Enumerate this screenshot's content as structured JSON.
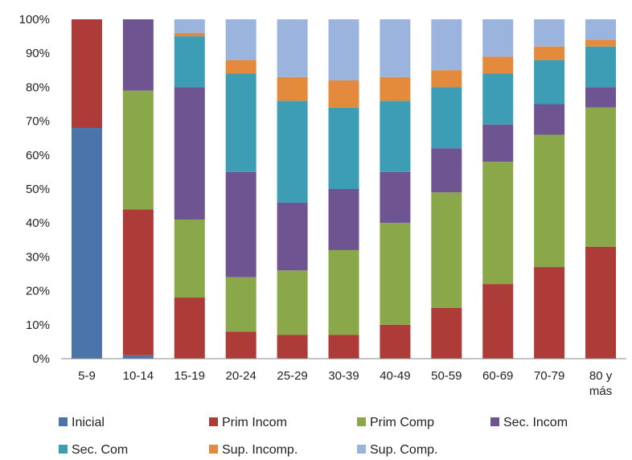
{
  "chart_data": {
    "type": "bar",
    "stacked": true,
    "percent": true,
    "title": "",
    "xlabel": "",
    "ylabel": "",
    "ylim": [
      0,
      100
    ],
    "yticks": [
      "0%",
      "10%",
      "20%",
      "30%",
      "40%",
      "50%",
      "60%",
      "70%",
      "80%",
      "90%",
      "100%"
    ],
    "grid": false,
    "legend_position": "bottom",
    "categories": [
      [
        "5-9"
      ],
      [
        "10-14"
      ],
      [
        "15-19"
      ],
      [
        "20-24"
      ],
      [
        "25-29"
      ],
      [
        "30-39"
      ],
      [
        "40-49"
      ],
      [
        "50-59"
      ],
      [
        "60-69"
      ],
      [
        "70-79"
      ],
      [
        "80 y",
        "más"
      ]
    ],
    "series": [
      {
        "name": "Inicial",
        "color": "#4a74aa",
        "values": [
          68,
          1,
          0,
          0,
          0,
          0,
          0,
          0,
          0,
          0,
          0
        ]
      },
      {
        "name": "Prim Incom",
        "color": "#ad3b37",
        "values": [
          32,
          43,
          18,
          8,
          7,
          7,
          10,
          15,
          22,
          27,
          33
        ]
      },
      {
        "name": "Prim Comp",
        "color": "#8aa84a",
        "values": [
          0,
          35,
          23,
          16,
          19,
          25,
          30,
          34,
          36,
          39,
          41
        ]
      },
      {
        "name": "Sec. Incom",
        "color": "#6e5592",
        "values": [
          0,
          21,
          39,
          31,
          20,
          18,
          15,
          13,
          11,
          9,
          6
        ]
      },
      {
        "name": "Sec. Com",
        "color": "#3c9db4",
        "values": [
          0,
          0,
          15,
          29,
          30,
          24,
          21,
          18,
          15,
          13,
          12
        ]
      },
      {
        "name": "Sup. Incomp.",
        "color": "#e38a3d",
        "values": [
          0,
          0,
          1,
          4,
          7,
          8,
          7,
          5,
          5,
          4,
          2
        ]
      },
      {
        "name": "Sup. Comp.",
        "color": "#9bb4dd",
        "values": [
          0,
          0,
          4,
          12,
          17,
          18,
          17,
          15,
          11,
          8,
          6
        ]
      }
    ]
  }
}
